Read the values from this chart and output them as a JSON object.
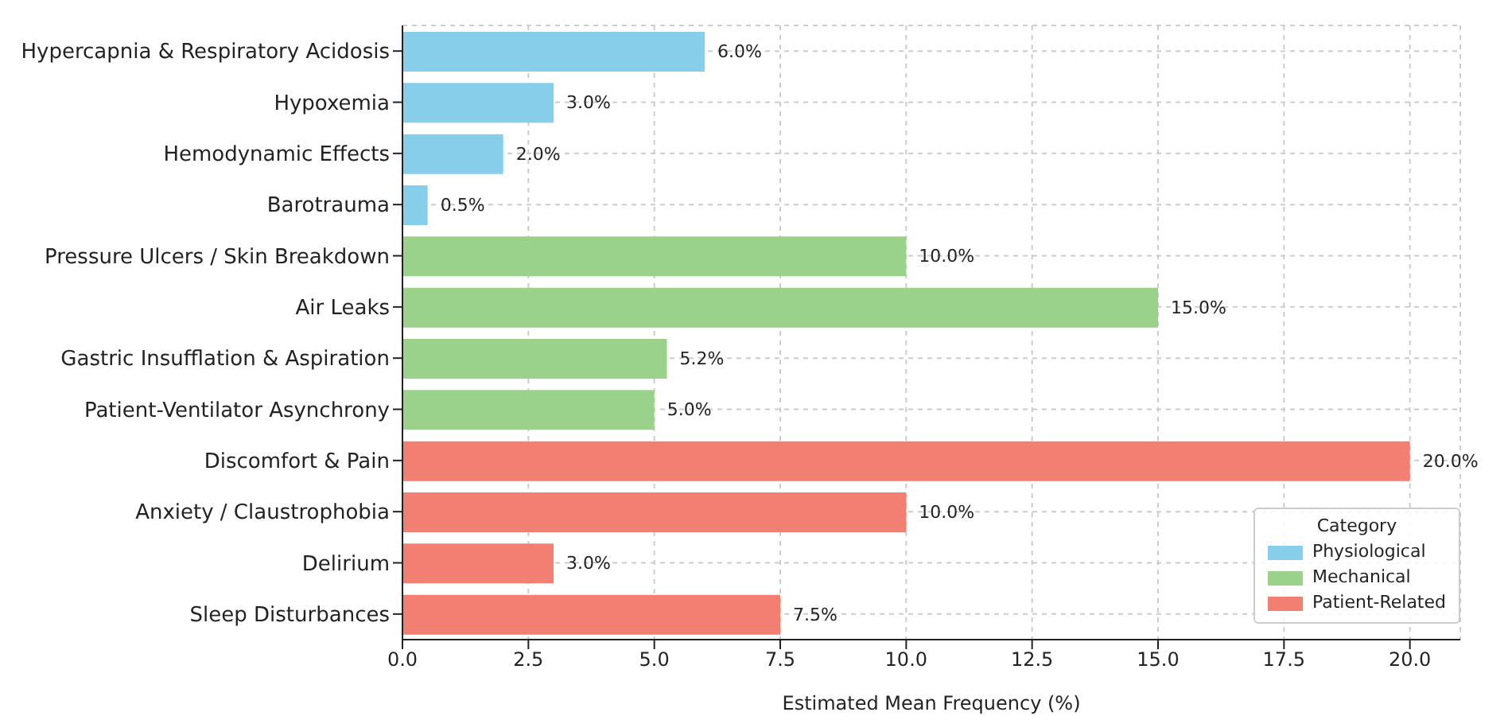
{
  "chart_data": {
    "type": "bar",
    "orientation": "horizontal",
    "stacked": true,
    "categories": [
      "Hypercapnia & Respiratory Acidosis",
      "Hypoxemia",
      "Hemodynamic Effects",
      "Barotrauma",
      "Pressure Ulcers / Skin Breakdown",
      "Air Leaks",
      "Gastric Insufflation & Aspiration",
      "Patient-Ventilator Asynchrony",
      "Discomfort & Pain",
      "Anxiety / Claustrophobia",
      "Delirium",
      "Sleep Disturbances"
    ],
    "series": [
      {
        "name": "Physiological",
        "color": "#87ceeb",
        "values": [
          6.0,
          3.0,
          2.0,
          0.5,
          null,
          null,
          null,
          null,
          null,
          null,
          null,
          null
        ],
        "value_labels": [
          "6.0%",
          "3.0%",
          "2.0%",
          "0.5%",
          null,
          null,
          null,
          null,
          null,
          null,
          null,
          null
        ]
      },
      {
        "name": "Mechanical",
        "color": "#9ad18b",
        "values": [
          null,
          null,
          null,
          null,
          10.0,
          15.0,
          5.25,
          5.0,
          null,
          null,
          null,
          null
        ],
        "value_labels": [
          null,
          null,
          null,
          null,
          "10.0%",
          "15.0%",
          "5.2%",
          "5.0%",
          null,
          null,
          null,
          null
        ]
      },
      {
        "name": "Patient-Related",
        "color": "#f28072",
        "values": [
          null,
          null,
          null,
          null,
          null,
          null,
          null,
          null,
          20.0,
          10.0,
          3.0,
          7.5
        ],
        "value_labels": [
          null,
          null,
          null,
          null,
          null,
          null,
          null,
          null,
          "20.0%",
          "10.0%",
          "3.0%",
          "7.5%"
        ]
      }
    ],
    "xlabel": "Estimated Mean Frequency (%)",
    "legend_title": "Category",
    "legend": "bottom right",
    "grid": true,
    "xlim": [
      0,
      21
    ],
    "xticks": [
      {
        "value": 0,
        "label": "0.0"
      },
      {
        "value": 2.5,
        "label": "2.5"
      },
      {
        "value": 5,
        "label": "5.0"
      },
      {
        "value": 7.5,
        "label": "7.5"
      },
      {
        "value": 10,
        "label": "10.0"
      },
      {
        "value": 12.5,
        "label": "12.5"
      },
      {
        "value": 15,
        "label": "15.0"
      },
      {
        "value": 17.5,
        "label": "17.5"
      },
      {
        "value": 20,
        "label": "20.0"
      }
    ]
  }
}
